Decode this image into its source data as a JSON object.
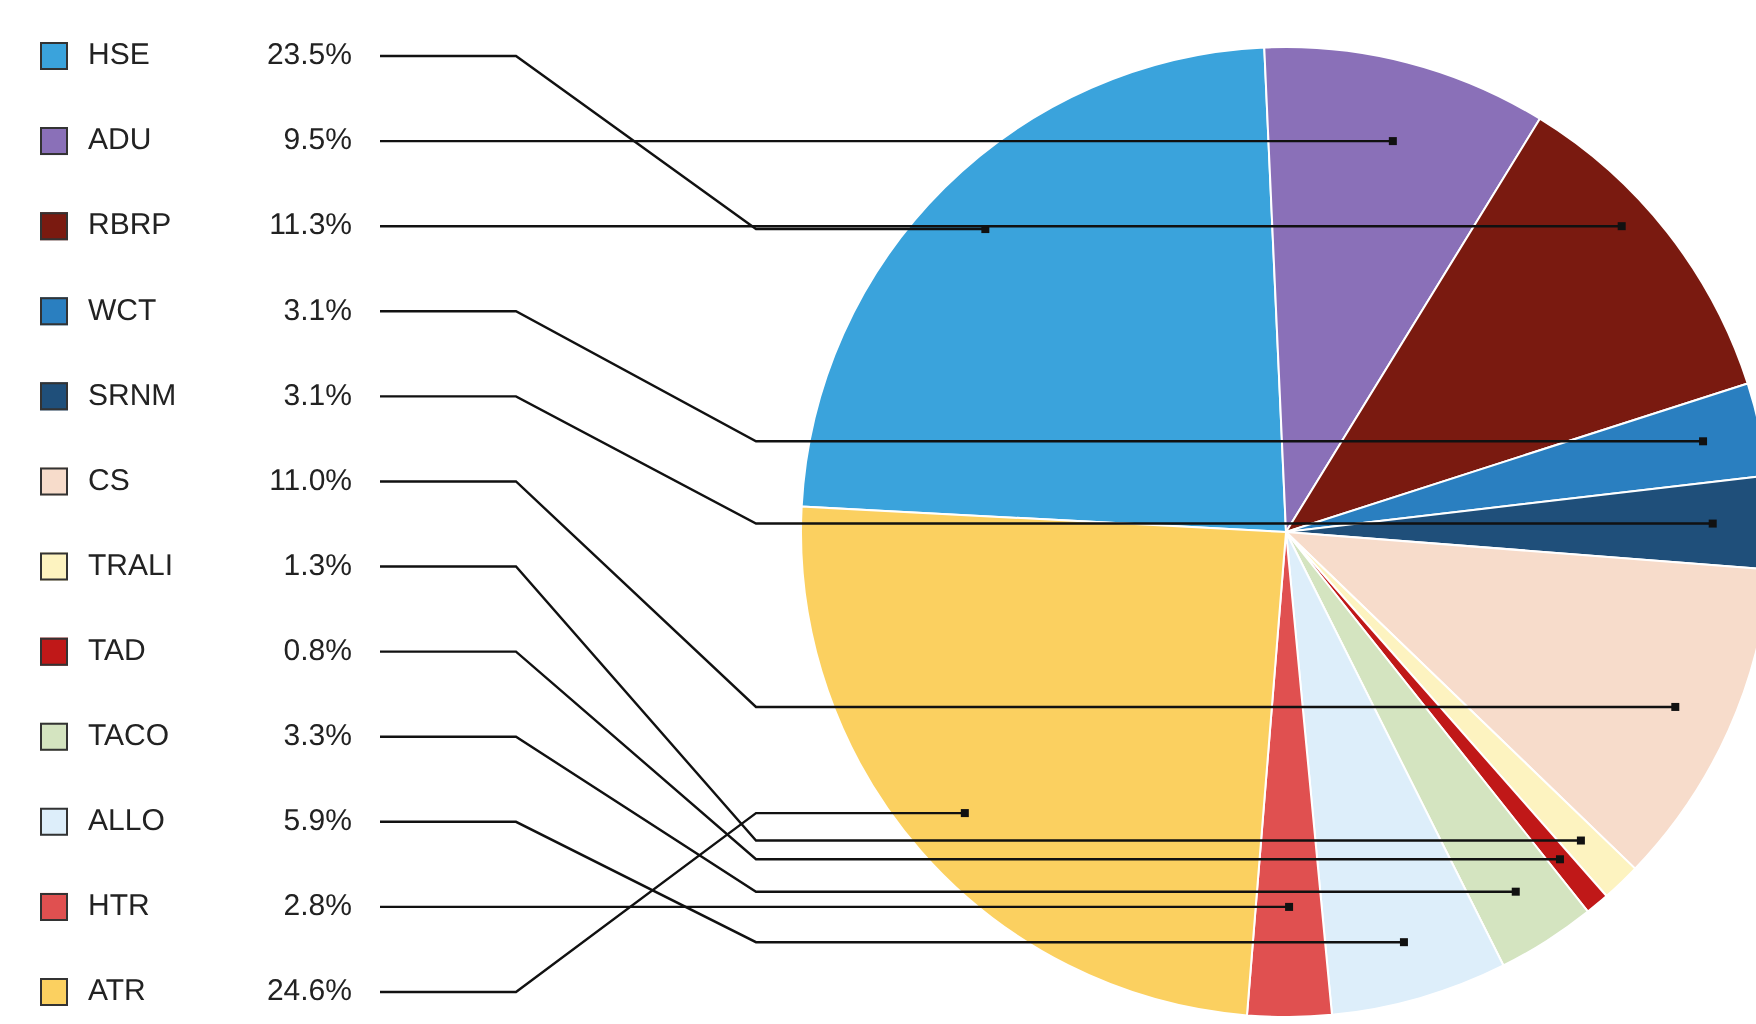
{
  "chart_data": {
    "type": "pie",
    "legend": "left",
    "categories": [
      "HSE",
      "ADU",
      "RBRP",
      "WCT",
      "SRNM",
      "CS",
      "TRALI",
      "TAD",
      "TACO",
      "ALLO",
      "HTR",
      "ATR"
    ],
    "values": [
      23.5,
      9.5,
      11.3,
      3.1,
      3.1,
      11.0,
      1.3,
      0.8,
      3.3,
      5.9,
      2.8,
      24.6
    ],
    "value_labels": [
      "23.5%",
      "9.5%",
      "11.3%",
      "3.1%",
      "3.1%",
      "11.0%",
      "1.3%",
      "0.8%",
      "3.3%",
      "5.9%",
      "2.8%",
      "24.6%"
    ],
    "colors": [
      "#3aa3dc",
      "#8a70b8",
      "#7a1a10",
      "#2a7fc0",
      "#1f4f7a",
      "#f7dccb",
      "#fdf3c0",
      "#c01818",
      "#d4e4c0",
      "#ddeefa",
      "#e05050",
      "#fbd060"
    ]
  }
}
